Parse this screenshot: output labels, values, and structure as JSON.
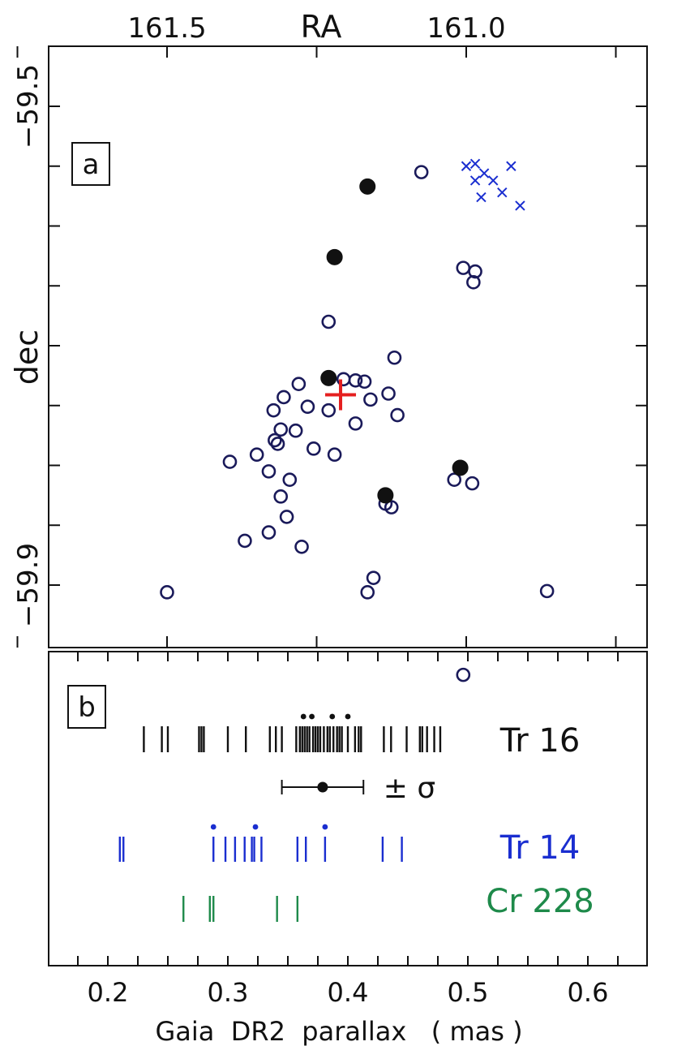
{
  "chart_data": [
    {
      "panel": "a",
      "type": "scatter",
      "panel_label": "a",
      "xlabel": "RA",
      "ylabel": "dec",
      "xlim": [
        161.9,
        160.6
      ],
      "ylim": [
        -59.95,
        -59.45
      ],
      "x_reversed": true,
      "x_ticks_labeled": [
        161.5,
        161.0
      ],
      "x_tick_labels": [
        "161.5",
        "161.0"
      ],
      "x_minor_ticks": [
        161.75,
        161.5,
        161.25,
        161.0,
        160.75
      ],
      "y_ticks_labeled": [
        -59.5,
        -59.9
      ],
      "y_tick_labels": [
        "−59.5",
        "−59.9"
      ],
      "y_ticks": [
        -59.5,
        -59.55,
        -59.6,
        -59.65,
        -59.7,
        -59.75,
        -59.8,
        -59.85,
        -59.9
      ],
      "grid": false,
      "series": [
        {
          "marker": "open-circle",
          "color": "#1a1a5a",
          "points": [
            [
              161.075,
              -59.555
            ],
            [
              161.005,
              -59.635
            ],
            [
              160.985,
              -59.638
            ],
            [
              160.988,
              -59.647
            ],
            [
              161.23,
              -59.68
            ],
            [
              161.12,
              -59.71
            ],
            [
              161.17,
              -59.73
            ],
            [
              161.185,
              -59.729
            ],
            [
              161.205,
              -59.728
            ],
            [
              161.13,
              -59.74
            ],
            [
              161.16,
              -59.745
            ],
            [
              161.185,
              -59.765
            ],
            [
              161.115,
              -59.758
            ],
            [
              161.28,
              -59.732
            ],
            [
              161.305,
              -59.743
            ],
            [
              161.322,
              -59.754
            ],
            [
              161.265,
              -59.751
            ],
            [
              161.23,
              -59.754
            ],
            [
              161.31,
              -59.77
            ],
            [
              161.285,
              -59.771
            ],
            [
              161.32,
              -59.779
            ],
            [
              161.395,
              -59.797
            ],
            [
              161.35,
              -59.791
            ],
            [
              161.33,
              -59.805
            ],
            [
              161.315,
              -59.782
            ],
            [
              161.255,
              -59.786
            ],
            [
              161.22,
              -59.791
            ],
            [
              161.295,
              -59.812
            ],
            [
              161.31,
              -59.826
            ],
            [
              161.3,
              -59.843
            ],
            [
              161.33,
              -59.856
            ],
            [
              161.37,
              -59.863
            ],
            [
              161.275,
              -59.868
            ],
            [
              161.02,
              -59.812
            ],
            [
              160.99,
              -59.815
            ],
            [
              161.135,
              -59.832
            ],
            [
              161.125,
              -59.835
            ],
            [
              161.155,
              -59.894
            ],
            [
              161.165,
              -59.906
            ],
            [
              161.5,
              -59.906
            ],
            [
              160.865,
              -59.905
            ],
            [
              161.005,
              -59.975
            ]
          ]
        },
        {
          "marker": "filled-circle",
          "color": "#111111",
          "points": [
            [
              161.165,
              -59.567
            ],
            [
              161.22,
              -59.626
            ],
            [
              161.23,
              -59.727
            ],
            [
              161.01,
              -59.802
            ],
            [
              161.135,
              -59.825
            ]
          ]
        },
        {
          "marker": "cross",
          "color": "#1a2ed0",
          "points": [
            [
              161.0,
              -59.55
            ],
            [
              160.985,
              -59.548
            ],
            [
              160.97,
              -59.556
            ],
            [
              160.985,
              -59.562
            ],
            [
              160.955,
              -59.562
            ],
            [
              160.94,
              -59.572
            ],
            [
              160.925,
              -59.55
            ],
            [
              160.91,
              -59.583
            ],
            [
              160.975,
              -59.576
            ]
          ]
        },
        {
          "marker": "plus",
          "color": "#e51f1f",
          "points": [
            [
              161.21,
              -59.741
            ]
          ]
        }
      ]
    },
    {
      "panel": "b",
      "type": "scatter",
      "panel_label": "b",
      "xlabel": "Gaia  DR2  parallax   ( mas )",
      "xlim": [
        0.15,
        0.65
      ],
      "x_ticks_labeled": [
        0.2,
        0.3,
        0.4,
        0.5,
        0.6
      ],
      "x_tick_labels": [
        "0.2",
        "0.3",
        "0.4",
        "0.5",
        "0.6"
      ],
      "x_minor_ticks": [
        0.15,
        0.175,
        0.2,
        0.225,
        0.25,
        0.275,
        0.3,
        0.325,
        0.35,
        0.375,
        0.4,
        0.425,
        0.45,
        0.475,
        0.5,
        0.525,
        0.55,
        0.575,
        0.6,
        0.625,
        0.65
      ],
      "grid": false,
      "series": [
        {
          "name": "Tr 16",
          "color": "#111111",
          "values": [
            0.23,
            0.245,
            0.25,
            0.276,
            0.278,
            0.28,
            0.3,
            0.315,
            0.335,
            0.34,
            0.345,
            0.357,
            0.36,
            0.362,
            0.364,
            0.366,
            0.368,
            0.371,
            0.373,
            0.375,
            0.377,
            0.38,
            0.383,
            0.385,
            0.388,
            0.391,
            0.393,
            0.395,
            0.4,
            0.406,
            0.409,
            0.411,
            0.43,
            0.436,
            0.449,
            0.46,
            0.462,
            0.466,
            0.472,
            0.477
          ],
          "marked_values": [
            0.363,
            0.37,
            0.387,
            0.4
          ]
        },
        {
          "name": "Tr 14",
          "color": "#1a2ed0",
          "values": [
            0.21,
            0.213,
            0.288,
            0.298,
            0.306,
            0.314,
            0.32,
            0.322,
            0.328,
            0.358,
            0.365,
            0.381,
            0.429,
            0.445
          ],
          "marked_values": [
            0.288,
            0.323,
            0.381
          ]
        },
        {
          "name": "Cr 228",
          "color": "#1e8a4a",
          "values": [
            0.263,
            0.285,
            0.288,
            0.341,
            0.358
          ]
        }
      ],
      "error_bar": {
        "label": "± σ",
        "center": 0.379,
        "low": 0.345,
        "high": 0.413
      }
    }
  ]
}
